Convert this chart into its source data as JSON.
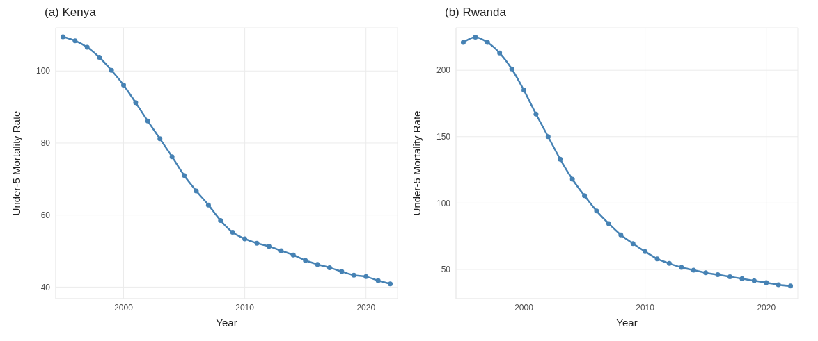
{
  "chart_data": [
    {
      "type": "line",
      "title": "(a)  Kenya",
      "xlabel": "Year",
      "ylabel": "Under-5 Mortality Rate",
      "x": [
        1995,
        1996,
        1997,
        1998,
        1999,
        2000,
        2001,
        2002,
        2003,
        2004,
        2005,
        2006,
        2007,
        2008,
        2009,
        2010,
        2011,
        2012,
        2013,
        2014,
        2015,
        2016,
        2017,
        2018,
        2019,
        2020,
        2021,
        2022
      ],
      "series": [
        {
          "color": "#4682b4",
          "values": [
            109.5,
            108.4,
            106.6,
            103.8,
            100.2,
            96.1,
            91.2,
            86.1,
            81.2,
            76.2,
            71.0,
            66.7,
            62.8,
            58.5,
            55.2,
            53.4,
            52.2,
            51.3,
            50.1,
            48.9,
            47.4,
            46.3,
            45.4,
            44.3,
            43.3,
            42.9,
            41.8,
            40.9
          ]
        }
      ],
      "xlim": [
        1994.4,
        2022.6
      ],
      "xticks": [
        2000,
        2010,
        2020
      ],
      "ylim": [
        36.8,
        112
      ],
      "yticks": [
        40,
        60,
        80,
        100
      ],
      "grid": true,
      "marker": "circle",
      "line_style": "solid"
    },
    {
      "type": "line",
      "title": "(b)  Rwanda",
      "xlabel": "Year",
      "ylabel": "Under-5 Mortality Rate",
      "x": [
        1995,
        1996,
        1997,
        1998,
        1999,
        2000,
        2001,
        2002,
        2003,
        2004,
        2005,
        2006,
        2007,
        2008,
        2009,
        2010,
        2011,
        2012,
        2013,
        2014,
        2015,
        2016,
        2017,
        2018,
        2019,
        2020,
        2021,
        2022
      ],
      "series": [
        {
          "color": "#4682b4",
          "values": [
            221,
            225,
            221,
            213,
            201,
            185,
            167,
            150,
            133,
            118,
            105.5,
            94,
            84.5,
            76,
            69.5,
            63.5,
            58,
            54.5,
            51.5,
            49.5,
            47.5,
            46,
            44.5,
            43,
            41.5,
            40,
            38.5,
            37.5
          ]
        }
      ],
      "xlim": [
        1994.4,
        2022.6
      ],
      "xticks": [
        2000,
        2010,
        2020
      ],
      "ylim": [
        28,
        232
      ],
      "yticks": [
        50,
        100,
        150,
        200
      ],
      "grid": true,
      "marker": "circle",
      "line_style": "solid"
    }
  ]
}
